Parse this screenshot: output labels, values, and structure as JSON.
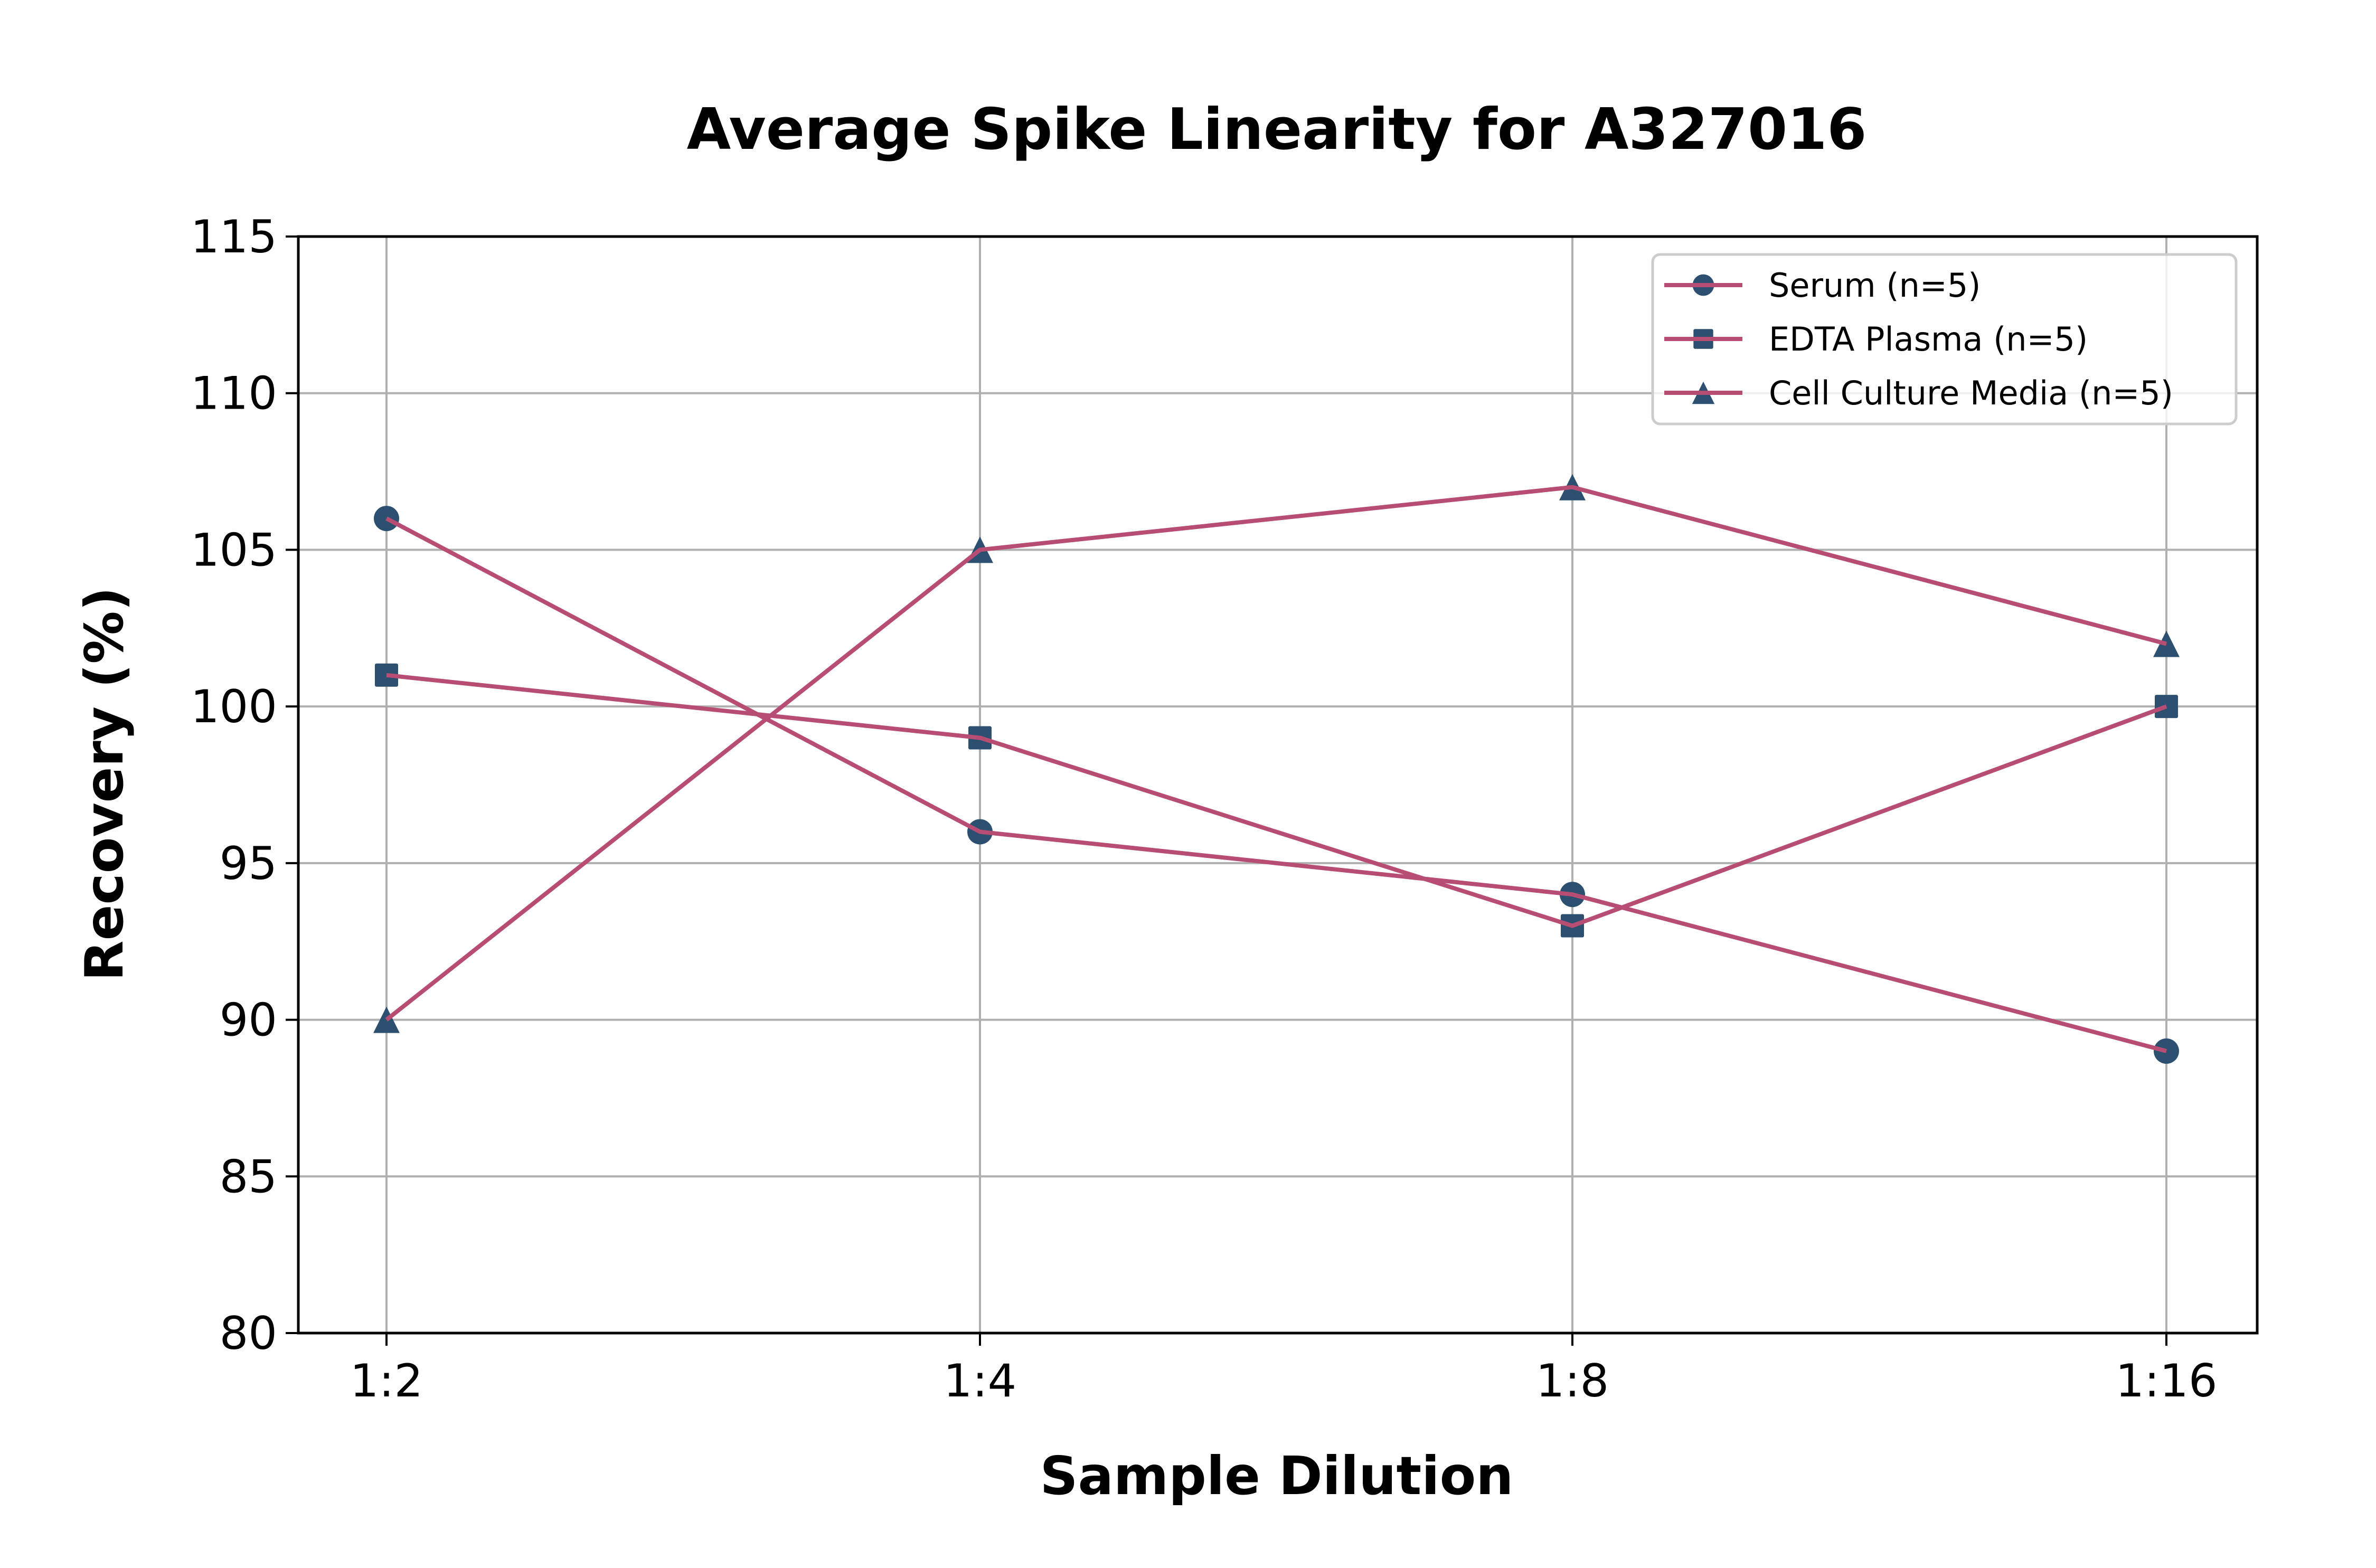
{
  "chart_data": {
    "type": "line",
    "title": "Average Spike Linearity for A327016",
    "xlabel": "Sample Dilution",
    "ylabel": "Recovery (%)",
    "categories": [
      "1:2",
      "1:4",
      "1:8",
      "1:16"
    ],
    "ylim": [
      80,
      115
    ],
    "yticks": [
      80,
      85,
      90,
      95,
      100,
      105,
      110,
      115
    ],
    "ytick_labels": [
      "80",
      "85",
      "90",
      "95",
      "100",
      "105",
      "110",
      "115"
    ],
    "grid": true,
    "legend_position": "top-right",
    "series": [
      {
        "name": "Serum (n=5)",
        "marker": "circle",
        "values": [
          106,
          96,
          94,
          89
        ]
      },
      {
        "name": "EDTA Plasma (n=5)",
        "marker": "square",
        "values": [
          101,
          99,
          93,
          100
        ]
      },
      {
        "name": "Cell Culture Media (n=5)",
        "marker": "triangle",
        "values": [
          90,
          105,
          107,
          102
        ]
      }
    ],
    "colors": {
      "line": "#b84d73",
      "marker": "#2e5070",
      "grid": "#b0b0b0",
      "axis": "#000000",
      "legend_border": "#cccccc"
    }
  }
}
